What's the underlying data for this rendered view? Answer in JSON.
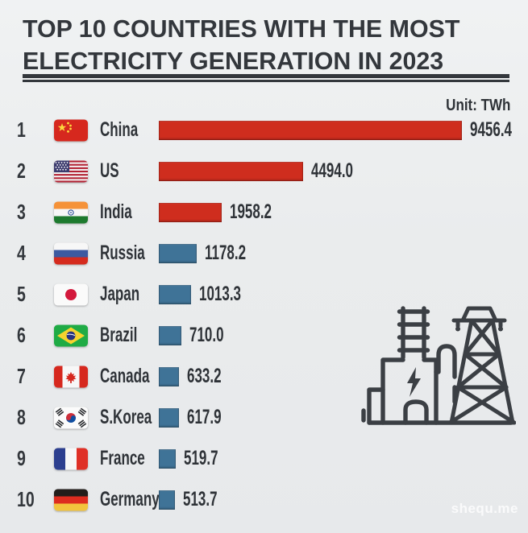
{
  "title": {
    "line1": "TOP 10 COUNTRIES WITH THE MOST",
    "line2": "ELECTRICITY GENERATION IN 2023"
  },
  "unit_label": "Unit: TWh",
  "watermark": "shequ.me",
  "colors": {
    "background": "#eaeced",
    "title_text": "#33373c",
    "bar_red": "#cf2d1e",
    "bar_blue": "#3f7397",
    "icon_stroke": "#3b3f44"
  },
  "icons": {
    "decoration": "power-plant-and-transmission-tower-icon"
  },
  "chart_data": {
    "type": "bar",
    "orientation": "horizontal",
    "title": "TOP 10 COUNTRIES WITH THE MOST ELECTRICITY GENERATION IN 2023",
    "unit": "TWh",
    "value_range": [
      0,
      9456.4
    ],
    "grid": false,
    "legend": false,
    "categories": [
      "China",
      "US",
      "India",
      "Russia",
      "Japan",
      "Brazil",
      "Canada",
      "S.Korea",
      "France",
      "Germany"
    ],
    "values": [
      9456.4,
      4494.0,
      1958.2,
      1178.2,
      1013.3,
      710.0,
      633.2,
      617.9,
      519.7,
      513.7
    ],
    "rows": [
      {
        "rank": "1",
        "country": "China",
        "value": 9456.4,
        "value_label": "9456.4",
        "bar_color": "#cf2d1e",
        "flag_icon": "china-flag-icon",
        "flag": "cn"
      },
      {
        "rank": "2",
        "country": "US",
        "value": 4494.0,
        "value_label": "4494.0",
        "bar_color": "#cf2d1e",
        "flag_icon": "us-flag-icon",
        "flag": "us"
      },
      {
        "rank": "3",
        "country": "India",
        "value": 1958.2,
        "value_label": "1958.2",
        "bar_color": "#cf2d1e",
        "flag_icon": "india-flag-icon",
        "flag": "in"
      },
      {
        "rank": "4",
        "country": "Russia",
        "value": 1178.2,
        "value_label": "1178.2",
        "bar_color": "#3f7397",
        "flag_icon": "russia-flag-icon",
        "flag": "ru"
      },
      {
        "rank": "5",
        "country": "Japan",
        "value": 1013.3,
        "value_label": "1013.3",
        "bar_color": "#3f7397",
        "flag_icon": "japan-flag-icon",
        "flag": "jp"
      },
      {
        "rank": "6",
        "country": "Brazil",
        "value": 710.0,
        "value_label": "710.0",
        "bar_color": "#3f7397",
        "flag_icon": "brazil-flag-icon",
        "flag": "br"
      },
      {
        "rank": "7",
        "country": "Canada",
        "value": 633.2,
        "value_label": "633.2",
        "bar_color": "#3f7397",
        "flag_icon": "canada-flag-icon",
        "flag": "ca"
      },
      {
        "rank": "8",
        "country": "S.Korea",
        "value": 617.9,
        "value_label": "617.9",
        "bar_color": "#3f7397",
        "flag_icon": "south-korea-flag-icon",
        "flag": "kr"
      },
      {
        "rank": "9",
        "country": "France",
        "value": 519.7,
        "value_label": "519.7",
        "bar_color": "#3f7397",
        "flag_icon": "france-flag-icon",
        "flag": "fr"
      },
      {
        "rank": "10",
        "country": "Germany",
        "value": 513.7,
        "value_label": "513.7",
        "bar_color": "#3f7397",
        "flag_icon": "germany-flag-icon",
        "flag": "de"
      }
    ]
  }
}
